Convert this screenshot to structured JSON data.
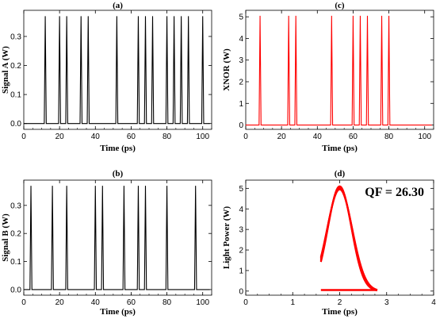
{
  "chart_data": [
    {
      "type": "line",
      "panel": "(a)",
      "xlabel": "Time (ps)",
      "ylabel": "Signal A (W)",
      "xlim": [
        0,
        105
      ],
      "ylim": [
        -0.02,
        0.39
      ],
      "xticks": [
        0,
        20,
        40,
        60,
        80,
        100
      ],
      "yticks": [
        0.0,
        0.1,
        0.2,
        0.3
      ],
      "ytick_labels": [
        "0.0",
        "0.1",
        "0.2",
        "0.3"
      ],
      "color": "#000000",
      "baseline": 0,
      "peak": 0.37,
      "pulse_times": [
        12,
        20,
        24,
        32,
        36,
        52,
        64,
        68,
        72,
        80,
        84,
        88,
        92,
        100
      ]
    },
    {
      "type": "line",
      "panel": "(b)",
      "xlabel": "Time (ps)",
      "ylabel": "Signal B (W)",
      "xlim": [
        0,
        105
      ],
      "ylim": [
        -0.02,
        0.39
      ],
      "xticks": [
        0,
        20,
        40,
        60,
        80,
        100
      ],
      "yticks": [
        0.0,
        0.1,
        0.2,
        0.3
      ],
      "ytick_labels": [
        "0.0",
        "0.1",
        "0.2",
        "0.3"
      ],
      "color": "#000000",
      "baseline": 0,
      "peak": 0.37,
      "pulse_times": [
        4,
        16,
        24,
        40,
        44,
        56,
        64,
        68,
        80,
        96
      ]
    },
    {
      "type": "line",
      "panel": "(c)",
      "xlabel": "Time (ps)",
      "ylabel": "XNOR (W)",
      "xlim": [
        0,
        105
      ],
      "ylim": [
        -0.2,
        5.3
      ],
      "xticks": [
        0,
        20,
        40,
        60,
        80,
        100
      ],
      "yticks": [
        0,
        1,
        2,
        3,
        4,
        5
      ],
      "ytick_labels": [
        "0",
        "1",
        "2",
        "3",
        "4",
        "5"
      ],
      "color": "#ff0000",
      "baseline": 0,
      "peak": 5.05,
      "pulse_times": [
        8,
        24,
        28,
        48,
        60,
        64,
        68,
        76,
        80
      ]
    },
    {
      "type": "line",
      "panel": "(d)",
      "xlabel": "Time (ps)",
      "ylabel": "Light Power (W)",
      "xlim": [
        0,
        4
      ],
      "ylim": [
        -0.2,
        5.4
      ],
      "xticks": [
        0,
        1,
        2,
        3,
        4
      ],
      "yticks": [
        0,
        1,
        2,
        3,
        4,
        5
      ],
      "ytick_labels": [
        "0",
        "1",
        "2",
        "3",
        "4",
        "5"
      ],
      "color": "#ff0000",
      "annotation": "QF = 26.30",
      "eye_center": 2.0,
      "eye_peak": 5.1,
      "eye_width": 0.25,
      "eye_rise_start": 1.6,
      "eye_fall_end": 2.8,
      "eye_baseline": 0.05
    }
  ]
}
